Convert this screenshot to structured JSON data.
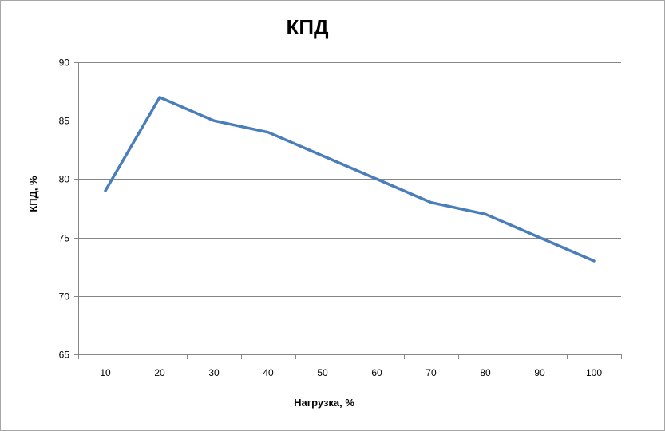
{
  "chart_data": {
    "type": "line",
    "title": "КПД",
    "xlabel": "Нагрузка, %",
    "ylabel": "КПД, %",
    "categories": [
      10,
      20,
      30,
      40,
      50,
      60,
      70,
      80,
      90,
      100
    ],
    "series": [
      {
        "values": [
          79,
          87,
          85,
          84,
          82,
          80,
          78,
          77,
          75,
          73
        ],
        "color": "#4a7ebb"
      }
    ],
    "ylim": [
      65,
      90
    ],
    "yticks": [
      65,
      70,
      75,
      80,
      85,
      90
    ],
    "grid": "horizontal",
    "legend": "none",
    "colors": {
      "gridline": "#868686",
      "axis": "#868686",
      "series": "#4a7ebb",
      "frame": "#a6a6a6"
    }
  }
}
